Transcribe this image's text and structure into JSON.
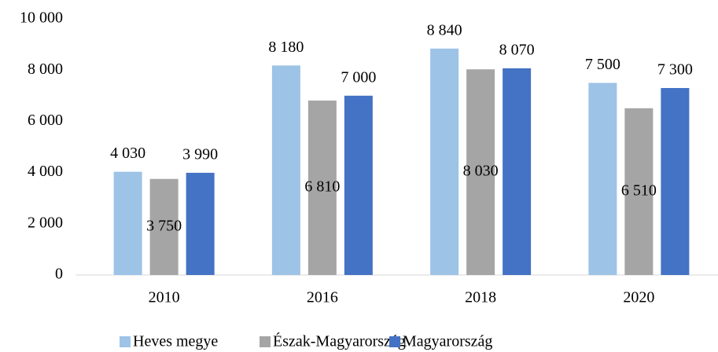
{
  "chart_data": {
    "type": "bar",
    "categories": [
      "2010",
      "2016",
      "2018",
      "2020"
    ],
    "series": [
      {
        "name": "Heves megye",
        "color": "#9dc3e6",
        "values": [
          4030,
          8180,
          8840,
          7500
        ],
        "value_labels": [
          "4 030",
          "8 180",
          "8 840",
          "7 500"
        ]
      },
      {
        "name": "Észak-Magyarország",
        "color": "#a5a5a5",
        "values": [
          3750,
          6810,
          8030,
          6510
        ],
        "value_labels": [
          "3 750",
          "6 810",
          "8 030",
          "6 510"
        ]
      },
      {
        "name": "Magyarország",
        "color": "#4472c4",
        "values": [
          3990,
          7000,
          8070,
          7300
        ],
        "value_labels": [
          "3 990",
          "7 000",
          "8 070",
          "7 300"
        ]
      }
    ],
    "ylim": [
      0,
      10000
    ],
    "yticks": [
      0,
      {
        "value": 2000,
        "label": "2 000"
      },
      {
        "value": 4000,
        "label": "4 000"
      },
      {
        "value": 6000,
        "label": "6 000"
      },
      {
        "value": 8000,
        "label": "8 000"
      },
      {
        "value": 10000,
        "label": "10 000"
      }
    ],
    "grid": false,
    "legend": "bottom"
  }
}
